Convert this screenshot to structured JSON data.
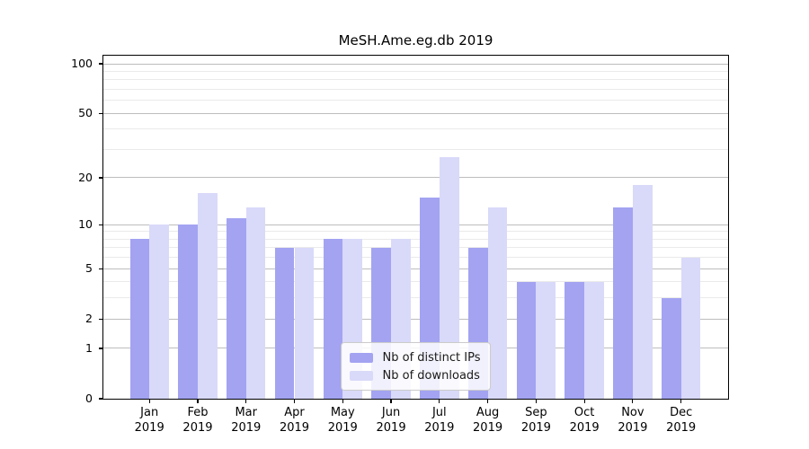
{
  "title": "MeSH.Ame.eg.db 2019",
  "chart_data": {
    "type": "bar",
    "title": "MeSH.Ame.eg.db 2019",
    "categories": [
      "Jan",
      "Feb",
      "Mar",
      "Apr",
      "May",
      "Jun",
      "Jul",
      "Aug",
      "Sep",
      "Oct",
      "Nov",
      "Dec"
    ],
    "year_label": "2019",
    "series": [
      {
        "name": "Nb of distinct IPs",
        "color": "#a3a3f2",
        "values": [
          8,
          10,
          11,
          7,
          8,
          7,
          15,
          7,
          4,
          4,
          13,
          3
        ]
      },
      {
        "name": "Nb of downloads",
        "color": "#d9d9f9",
        "values": [
          10,
          16,
          13,
          7,
          8,
          8,
          27,
          13,
          4,
          4,
          18,
          6
        ]
      }
    ],
    "y_axis": {
      "scale": "log1p",
      "tick_labels": [
        "100",
        "50",
        "20",
        "10",
        "5",
        "2",
        "1",
        "0"
      ],
      "tick_values": [
        100,
        50,
        20,
        10,
        5,
        2,
        1,
        0
      ],
      "major_gridlines": [
        1,
        2,
        5,
        10,
        20,
        50,
        100
      ],
      "minor_gridlines": [
        3,
        4,
        6,
        7,
        8,
        9,
        30,
        40,
        60,
        70,
        80,
        90
      ],
      "top_value": 112
    },
    "legend": {
      "position": "lower center"
    },
    "colors": {
      "major_grid": "#bdbdbd",
      "minor_grid": "#eaeaea",
      "axis": "#000000",
      "background": "#ffffff"
    }
  }
}
